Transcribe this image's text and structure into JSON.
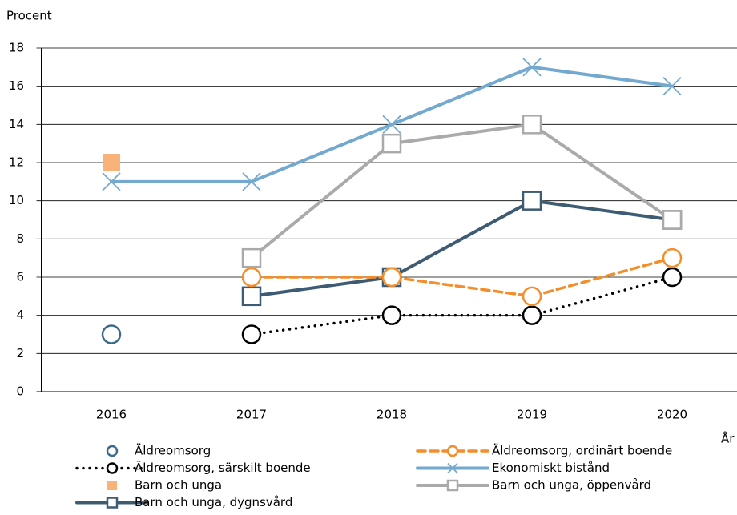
{
  "chart_data": {
    "type": "line",
    "y_label": "Procent",
    "x_label": "År",
    "categories": [
      "2016",
      "2017",
      "2018",
      "2019",
      "2020"
    ],
    "ylim": [
      0,
      18
    ],
    "yticks": [
      0,
      2,
      4,
      6,
      8,
      10,
      12,
      14,
      16,
      18
    ],
    "grid": true,
    "series": [
      {
        "name": "Äldreomsorg",
        "color": "#3a6b8c",
        "line_style": "none",
        "marker": "circle",
        "values": [
          3,
          null,
          null,
          null,
          null
        ]
      },
      {
        "name": "Äldreomsorg, särskilt boende",
        "color": "#000000",
        "line_style": "dotted",
        "marker": "circle",
        "values": [
          null,
          3,
          4,
          4,
          6
        ]
      },
      {
        "name": "Barn och unga",
        "color": "#f9b27a",
        "line_style": "none",
        "marker": "filled-square",
        "values": [
          12,
          null,
          null,
          null,
          null
        ]
      },
      {
        "name": "Barn och unga, dygnsvård",
        "color": "#3e5b74",
        "line_style": "solid",
        "marker": "square",
        "values": [
          null,
          5,
          6,
          10,
          9
        ]
      },
      {
        "name": "Äldreomsorg, ordinärt boende",
        "color": "#f28e2b",
        "line_style": "dashed",
        "marker": "circle",
        "values": [
          null,
          6,
          6,
          5,
          7
        ]
      },
      {
        "name": "Ekonomiskt bistånd",
        "color": "#74a9cf",
        "line_style": "solid",
        "marker": "x",
        "values": [
          11,
          11,
          14,
          17,
          16
        ]
      },
      {
        "name": "Barn och unga, öppenvård",
        "color": "#aaaaaa",
        "line_style": "solid",
        "marker": "square",
        "values": [
          null,
          7,
          13,
          14,
          9
        ]
      }
    ]
  }
}
